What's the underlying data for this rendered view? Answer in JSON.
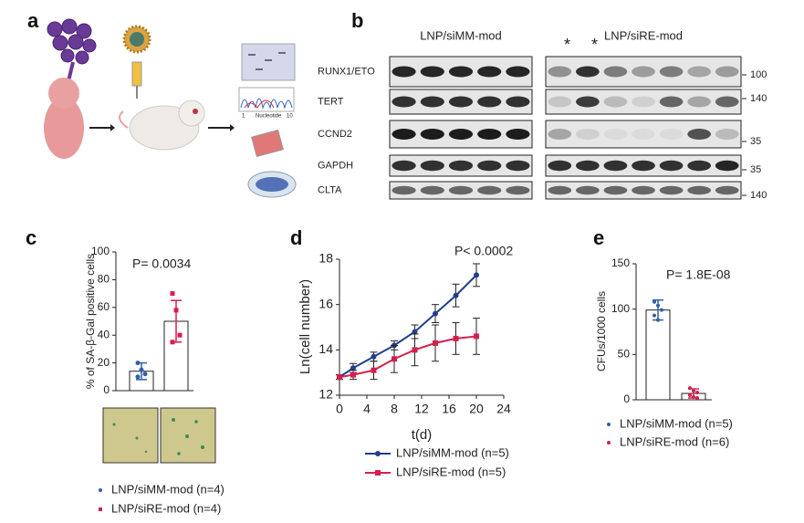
{
  "panel_a": {
    "label": "a",
    "chromatogram": {
      "start": "1",
      "axis_label": "Nucleotide",
      "end": "10"
    }
  },
  "panel_b": {
    "label": "b",
    "groups": [
      {
        "name": "LNP/siMM-mod",
        "color": "#1f3f8a"
      },
      {
        "name": "LNP/siRE-mod",
        "color": "#d4204e"
      }
    ],
    "asterisks": [
      "*",
      "*"
    ],
    "rows": [
      {
        "name": "RUNX1/ETO",
        "marker": "100"
      },
      {
        "name": "TERT",
        "marker": "140"
      },
      {
        "name": "CCND2",
        "marker": "35"
      },
      {
        "name": "GAPDH",
        "marker": "35"
      },
      {
        "name": "CLTA",
        "marker": "140"
      }
    ]
  },
  "chart_data": [
    {
      "type": "bar",
      "panel": "c",
      "ylabel": "% of SA-β-Gal positive cells",
      "annotation": "P= 0.0034",
      "ylim": [
        0,
        100
      ],
      "yticks": [
        0,
        20,
        40,
        60,
        80,
        100
      ],
      "series": [
        {
          "name": "LNP/siMM-mod (n=4)",
          "color": "#2f5fa8",
          "marker": "circle",
          "values": [
            14
          ],
          "errors": [
            6
          ],
          "points": [
            20,
            15,
            12,
            10
          ]
        },
        {
          "name": "LNP/siRE-mod (n=4)",
          "color": "#d4204e",
          "marker": "square",
          "values": [
            50
          ],
          "errors": [
            15
          ],
          "points": [
            70,
            58,
            40,
            35
          ]
        }
      ]
    },
    {
      "type": "line",
      "panel": "d",
      "xlabel": "t(d)",
      "ylabel": "Ln(cell number)",
      "annotation": "P< 0.0002",
      "x": [
        0,
        2,
        5,
        8,
        11,
        14,
        17,
        20
      ],
      "xlim": [
        0,
        24
      ],
      "xticks": [
        0,
        4,
        8,
        12,
        16,
        20,
        24
      ],
      "ylim": [
        12,
        18
      ],
      "yticks": [
        12,
        14,
        16,
        18
      ],
      "series": [
        {
          "name": "LNP/siMM-mod (n=5)",
          "color": "#1f3f8a",
          "marker": "circle",
          "values": [
            12.8,
            13.2,
            13.7,
            14.2,
            14.8,
            15.6,
            16.4,
            17.3
          ],
          "errors": [
            0.1,
            0.2,
            0.2,
            0.2,
            0.3,
            0.4,
            0.5,
            0.5
          ]
        },
        {
          "name": "LNP/siRE-mod (n=5)",
          "color": "#d4204e",
          "marker": "square",
          "values": [
            12.8,
            12.9,
            13.1,
            13.6,
            14.0,
            14.3,
            14.5,
            14.6
          ],
          "errors": [
            0.1,
            0.2,
            0.4,
            0.6,
            0.7,
            0.8,
            0.7,
            0.8
          ]
        }
      ]
    },
    {
      "type": "bar",
      "panel": "e",
      "ylabel": "CFUs/1000 cells",
      "annotation": "P= 1.8E-08",
      "ylim": [
        0,
        150
      ],
      "yticks": [
        0,
        50,
        100,
        150
      ],
      "series": [
        {
          "name": "LNP/siMM-mod (n=5)",
          "color": "#2f5fa8",
          "marker": "dot",
          "values": [
            99
          ],
          "errors": [
            11
          ],
          "points": [
            108,
            104,
            99,
            93,
            88
          ]
        },
        {
          "name": "LNP/siRE-mod (n=6)",
          "color": "#d4204e",
          "marker": "dot",
          "values": [
            7
          ],
          "errors": [
            5
          ],
          "points": [
            13,
            10,
            8,
            5,
            3,
            2
          ]
        }
      ]
    }
  ]
}
